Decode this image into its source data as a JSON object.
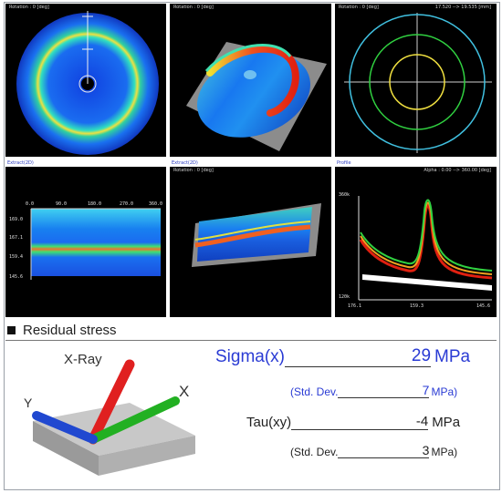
{
  "panels": {
    "p1": {
      "title": "Rotation : 0 [deg]"
    },
    "p2": {
      "title": "Rotation : 0 [deg]"
    },
    "p3": {
      "title": "Rotation : 0 [deg]",
      "title_right": "17.520 --> 19.535 [mm]"
    },
    "p4": {
      "tab": "Extract(2D)",
      "x_ticks": [
        "0.0",
        "90.0",
        "180.0",
        "270.0",
        "360.0"
      ],
      "y_ticks": [
        "169.0",
        "167.1",
        "159.4",
        "145.6"
      ]
    },
    "p5": {
      "tab": "Extract(2D)",
      "title": "Rotation : 0 [deg]"
    },
    "p6": {
      "tab": "Profile",
      "title": "Alpha : 0.00 --> 360.00 [deg]",
      "y_top": "360k",
      "y_bottom": "120k",
      "x_ticks": [
        "176.1",
        "159.3",
        "145.6"
      ]
    }
  },
  "section": {
    "title": "Residual stress"
  },
  "diagram": {
    "xray_label": "X-Ray",
    "x_label": "X",
    "y_label": "Y"
  },
  "results": {
    "sigma_label": "Sigma(x)",
    "sigma_value": "29",
    "sigma_unit": "MPa",
    "sigma_std_label": "(Std. Dev.",
    "sigma_std_value": "7",
    "sigma_std_unit": "MPa)",
    "tau_label": "Tau(xy)",
    "tau_value": "-4",
    "tau_unit": "MPa",
    "tau_std_label": "(Std. Dev.",
    "tau_std_value": "3",
    "tau_std_unit": "MPa)"
  },
  "colors": {
    "accent_blue": "#2a3bd4",
    "diagram_red": "#e02020",
    "diagram_green": "#22b022",
    "diagram_blue": "#2048d0"
  }
}
